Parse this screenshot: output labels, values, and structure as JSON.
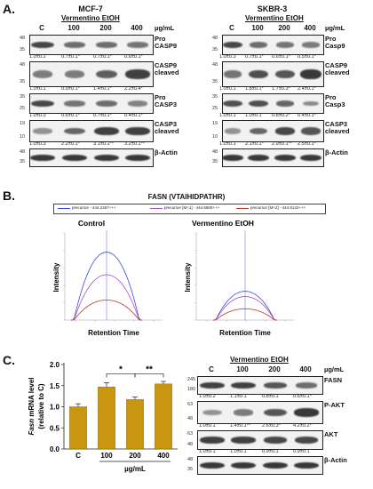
{
  "panel_a": {
    "letter": "A.",
    "mcf7": {
      "title": "MCF-7",
      "treatment": "Vermentino EtOH",
      "lanes": [
        "C",
        "100",
        "200",
        "400"
      ],
      "unit": "µg/mL",
      "rows": [
        {
          "label": "Pro\nCASP9",
          "kda": [
            "48",
            "35"
          ],
          "quant": [
            "1.0±0.2",
            "0.7±0.1*",
            "0.7±0.1*",
            "0.6±0.1*"
          ],
          "intensity": [
            0.8,
            0.55,
            0.55,
            0.5
          ]
        },
        {
          "label": "CASP9\ncleaved",
          "kda": [
            "48",
            "35"
          ],
          "quant": [
            "1.0±0.1",
            "0.9±0.1*",
            "1.4±0.1*",
            "2.2±0.4*"
          ],
          "intensity": [
            0.45,
            0.45,
            0.65,
            0.85
          ]
        },
        {
          "label": "Pro\nCASP3",
          "kda": [
            "35",
            "25"
          ],
          "quant": [
            "1.0±0.3",
            "0.6±0.1*",
            "0.7±0.1*",
            "0.4±0.1*"
          ],
          "intensity": [
            0.8,
            0.5,
            0.55,
            0.4
          ]
        },
        {
          "label": "CASP3\ncleaved",
          "kda": [
            "19",
            "10"
          ],
          "quant": [
            "1.0±0.3",
            "2.2±0.1*",
            "3.1±0.1**",
            "3.2±0.1**"
          ],
          "intensity": [
            0.3,
            0.6,
            0.85,
            0.85
          ]
        },
        {
          "label": "β-Actin",
          "kda": [
            "48",
            "35"
          ],
          "quant": [],
          "intensity": [
            0.9,
            0.9,
            0.9,
            0.9
          ]
        }
      ]
    },
    "skbr3": {
      "title": "SKBR-3",
      "treatment": "Vermentino EtOH",
      "lanes": [
        "C",
        "100",
        "200",
        "400"
      ],
      "unit": "µg/mL",
      "rows": [
        {
          "label": "Pro\nCasp9",
          "kda": [
            "48",
            "35"
          ],
          "quant": [
            "1.0±0.3",
            "0.7±0.1*",
            "0.6±0.1*",
            "0.5±0.1*"
          ],
          "intensity": [
            0.8,
            0.55,
            0.5,
            0.45
          ]
        },
        {
          "label": "CASP9\ncleaved",
          "kda": [
            "48",
            "35"
          ],
          "quant": [
            "1.0±0.1",
            "1.8±0.1*",
            "1.7±0.3*",
            "2.4±0.1*"
          ],
          "intensity": [
            0.5,
            0.75,
            0.7,
            0.9
          ]
        },
        {
          "label": "Pro\nCasp3",
          "kda": [
            "35",
            "25"
          ],
          "quant": [
            "1.0±0.1",
            "1.0±0.1",
            "0.8±0.2*",
            "0.4±0.1*"
          ],
          "intensity": [
            0.75,
            0.75,
            0.6,
            0.35
          ]
        },
        {
          "label": "CASP3\ncleaved",
          "kda": [
            "19",
            "10"
          ],
          "quant": [
            "1.0±0.1",
            "2.1±0.1*",
            "2.9±0.1**",
            "2.5±0.1*"
          ],
          "intensity": [
            0.3,
            0.6,
            0.8,
            0.7
          ]
        },
        {
          "label": "β-Actin",
          "kda": [
            "48",
            "35"
          ],
          "quant": [],
          "intensity": [
            0.9,
            0.9,
            0.9,
            0.9
          ]
        }
      ]
    }
  },
  "panel_b": {
    "letter": "B.",
    "title": "FASN (VTAIHIDPATHR)",
    "legend": [
      {
        "text": "precursor - 444.2457+++",
        "color": "#3b4bd6"
      },
      {
        "text": "precursor [M+1] - 444.5800+++",
        "color": "#a44fc4"
      },
      {
        "text": "precursor [M+2] - 444.9142+++",
        "color": "#c0392b"
      }
    ],
    "control_title": "Control",
    "treated_title": "Vermentino EtOH",
    "ylabel": "Intensity",
    "xlabel": "Retention Time"
  },
  "panel_c": {
    "letter": "C.",
    "ylabel_italic": "Fasn",
    "ylabel_rest": " mRNA level",
    "ylabel_line2": "(relative to C)",
    "xunit": "µg/mL",
    "sig_labels": [
      "*",
      "**"
    ],
    "chart_data": {
      "type": "bar",
      "categories": [
        "C",
        "100",
        "200",
        "400"
      ],
      "values": [
        1.0,
        1.47,
        1.17,
        1.54
      ],
      "errors": [
        0.07,
        0.1,
        0.06,
        0.06
      ],
      "ylim": [
        0.0,
        2.0
      ],
      "yticks": [
        "0.0",
        "0.5",
        "1.0",
        "1.5",
        "2.0"
      ],
      "bar_color": "#c8960f"
    },
    "blot": {
      "treatment": "Vermentino EtOH",
      "lanes": [
        "C",
        "100",
        "200",
        "400"
      ],
      "unit": "µg/mL",
      "rows": [
        {
          "label": "FASN",
          "kda": [
            "245",
            "180"
          ],
          "quant": [
            "1.0±0.2",
            "1.1±0.1",
            "0.8±0.1",
            "0.6±0.1*"
          ],
          "intensity": [
            0.85,
            0.85,
            0.7,
            0.55
          ]
        },
        {
          "label": "P-AKT",
          "kda": [
            "63",
            "48"
          ],
          "quant": [
            "1.0±0.1",
            "1.4±0.1**",
            "2.6±0.3*",
            "4.2±0.2*"
          ],
          "intensity": [
            0.3,
            0.45,
            0.7,
            0.9
          ]
        },
        {
          "label": "AKT",
          "kda": [
            "63",
            "48"
          ],
          "quant": [
            "1.0±0.1",
            "1.0±0.1",
            "0.9±0.1",
            "0.9±0.1"
          ],
          "intensity": [
            0.85,
            0.85,
            0.8,
            0.8
          ]
        },
        {
          "label": "β-Actin",
          "kda": [
            "48",
            "35"
          ],
          "quant": [],
          "intensity": [
            0.9,
            0.9,
            0.9,
            0.9
          ]
        }
      ]
    }
  }
}
